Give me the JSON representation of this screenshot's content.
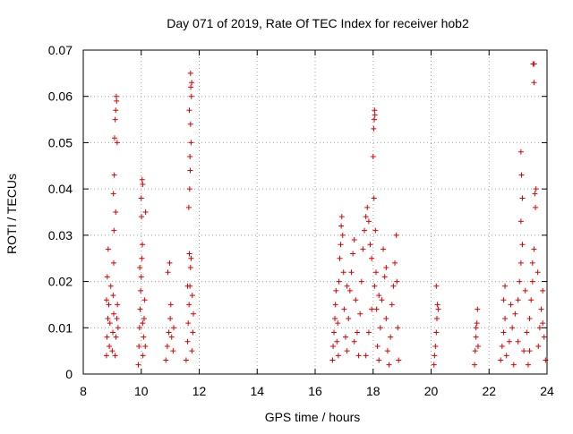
{
  "chart_data": {
    "type": "scatter",
    "title": "Day 071 of 2019, Rate Of TEC Index for receiver hob2",
    "xlabel": "GPS time / hours",
    "ylabel": "ROTI / TECUs",
    "xlim": [
      8,
      24
    ],
    "ylim": [
      0,
      0.07
    ],
    "x_ticks": [
      8,
      10,
      12,
      14,
      16,
      18,
      20,
      22,
      24
    ],
    "x_tick_labels": [
      "8",
      "10",
      "12",
      "14",
      "16",
      "18",
      "20",
      "22",
      "24"
    ],
    "y_ticks": [
      0,
      0.01,
      0.02,
      0.03,
      0.04,
      0.05,
      0.06,
      0.07
    ],
    "y_tick_labels": [
      "0",
      "0.01",
      "0.02",
      "0.03",
      "0.04",
      "0.05",
      "0.06",
      "0.07"
    ],
    "grid": true,
    "marker": "+",
    "marker_color": "#dd0000",
    "series": [
      {
        "name": "hob2",
        "points": [
          [
            8.8,
            0.004
          ],
          [
            8.82,
            0.008
          ],
          [
            8.85,
            0.012
          ],
          [
            8.8,
            0.016
          ],
          [
            8.83,
            0.021
          ],
          [
            8.86,
            0.027
          ],
          [
            8.9,
            0.006
          ],
          [
            8.92,
            0.011
          ],
          [
            8.88,
            0.015
          ],
          [
            8.95,
            0.019
          ],
          [
            9.0,
            0.005
          ],
          [
            9.02,
            0.009
          ],
          [
            9.05,
            0.013
          ],
          [
            9.03,
            0.017
          ],
          [
            9.05,
            0.024
          ],
          [
            9.06,
            0.031
          ],
          [
            9.04,
            0.039
          ],
          [
            9.07,
            0.043
          ],
          [
            9.08,
            0.051
          ],
          [
            9.1,
            0.055
          ],
          [
            9.12,
            0.057
          ],
          [
            9.14,
            0.06
          ],
          [
            9.15,
            0.059
          ],
          [
            9.17,
            0.05
          ],
          [
            9.1,
            0.004
          ],
          [
            9.13,
            0.008
          ],
          [
            9.16,
            0.012
          ],
          [
            9.18,
            0.015
          ],
          [
            9.2,
            0.01
          ],
          [
            9.12,
            0.035
          ],
          [
            9.9,
            0.002
          ],
          [
            9.92,
            0.006
          ],
          [
            9.94,
            0.01
          ],
          [
            9.96,
            0.014
          ],
          [
            9.98,
            0.018
          ],
          [
            10.0,
            0.021
          ],
          [
            10.02,
            0.025
          ],
          [
            10.04,
            0.028
          ],
          [
            10.01,
            0.034
          ],
          [
            10.0,
            0.038
          ],
          [
            10.03,
            0.042
          ],
          [
            10.05,
            0.041
          ],
          [
            10.06,
            0.004
          ],
          [
            10.08,
            0.008
          ],
          [
            10.1,
            0.012
          ],
          [
            10.12,
            0.016
          ],
          [
            10.05,
            0.011
          ],
          [
            10.15,
            0.035
          ],
          [
            10.14,
            0.006
          ],
          [
            9.95,
            0.023
          ],
          [
            10.85,
            0.003
          ],
          [
            10.9,
            0.006
          ],
          [
            10.95,
            0.009
          ],
          [
            11.0,
            0.012
          ],
          [
            11.05,
            0.008
          ],
          [
            11.1,
            0.005
          ],
          [
            10.92,
            0.022
          ],
          [
            10.98,
            0.024
          ],
          [
            11.02,
            0.015
          ],
          [
            11.12,
            0.01
          ],
          [
            11.55,
            0.003
          ],
          [
            11.6,
            0.007
          ],
          [
            11.62,
            0.011
          ],
          [
            11.65,
            0.015
          ],
          [
            11.68,
            0.019
          ],
          [
            11.7,
            0.023
          ],
          [
            11.66,
            0.026
          ],
          [
            11.64,
            0.036
          ],
          [
            11.67,
            0.04
          ],
          [
            11.69,
            0.044
          ],
          [
            11.68,
            0.047
          ],
          [
            11.72,
            0.05
          ],
          [
            11.7,
            0.054
          ],
          [
            11.66,
            0.057
          ],
          [
            11.73,
            0.06
          ],
          [
            11.71,
            0.062
          ],
          [
            11.74,
            0.063
          ],
          [
            11.7,
            0.065
          ],
          [
            11.75,
            0.005
          ],
          [
            11.78,
            0.009
          ],
          [
            11.8,
            0.013
          ],
          [
            11.72,
            0.025
          ],
          [
            11.76,
            0.017
          ],
          [
            11.6,
            0.019
          ],
          [
            16.6,
            0.003
          ],
          [
            16.62,
            0.006
          ],
          [
            16.65,
            0.009
          ],
          [
            16.68,
            0.012
          ],
          [
            16.7,
            0.015
          ],
          [
            16.72,
            0.018
          ],
          [
            16.75,
            0.007
          ],
          [
            16.78,
            0.011
          ],
          [
            16.8,
            0.004
          ],
          [
            16.82,
            0.02
          ],
          [
            16.85,
            0.025
          ],
          [
            16.88,
            0.028
          ],
          [
            16.9,
            0.032
          ],
          [
            16.92,
            0.034
          ],
          [
            16.95,
            0.03
          ],
          [
            16.98,
            0.022
          ],
          [
            17.0,
            0.014
          ],
          [
            17.05,
            0.008
          ],
          [
            17.1,
            0.005
          ],
          [
            17.15,
            0.012
          ],
          [
            17.2,
            0.018
          ],
          [
            17.25,
            0.022
          ],
          [
            17.3,
            0.026
          ],
          [
            17.35,
            0.029
          ],
          [
            17.4,
            0.016
          ],
          [
            17.45,
            0.009
          ],
          [
            17.5,
            0.004
          ],
          [
            17.55,
            0.013
          ],
          [
            17.6,
            0.02
          ],
          [
            17.65,
            0.027
          ],
          [
            17.7,
            0.031
          ],
          [
            17.75,
            0.034
          ],
          [
            17.8,
            0.036
          ],
          [
            17.85,
            0.033
          ],
          [
            17.9,
            0.028
          ],
          [
            17.95,
            0.025
          ],
          [
            18.0,
            0.047
          ],
          [
            18.02,
            0.053
          ],
          [
            18.04,
            0.055
          ],
          [
            18.06,
            0.056
          ],
          [
            18.05,
            0.057
          ],
          [
            18.03,
            0.038
          ],
          [
            18.08,
            0.031
          ],
          [
            18.1,
            0.022
          ],
          [
            18.12,
            0.014
          ],
          [
            18.15,
            0.006
          ],
          [
            18.2,
            0.003
          ],
          [
            18.25,
            0.01
          ],
          [
            18.3,
            0.016
          ],
          [
            18.35,
            0.027
          ],
          [
            18.4,
            0.021
          ],
          [
            18.45,
            0.012
          ],
          [
            18.5,
            0.005
          ],
          [
            18.55,
            0.002
          ],
          [
            18.6,
            0.008
          ],
          [
            18.65,
            0.015
          ],
          [
            18.7,
            0.019
          ],
          [
            18.75,
            0.024
          ],
          [
            18.8,
            0.03
          ],
          [
            18.82,
            0.02
          ],
          [
            18.85,
            0.01
          ],
          [
            18.88,
            0.003
          ],
          [
            17.85,
            0.009
          ],
          [
            17.95,
            0.014
          ],
          [
            18.05,
            0.019
          ],
          [
            17.35,
            0.007
          ],
          [
            17.75,
            0.004
          ],
          [
            18.2,
            0.017
          ],
          [
            18.45,
            0.023
          ],
          [
            17.1,
            0.019
          ],
          [
            20.1,
            0.002
          ],
          [
            20.12,
            0.004
          ],
          [
            20.15,
            0.006
          ],
          [
            20.18,
            0.009
          ],
          [
            20.2,
            0.012
          ],
          [
            20.22,
            0.015
          ],
          [
            20.18,
            0.019
          ],
          [
            20.25,
            0.014
          ],
          [
            21.5,
            0.002
          ],
          [
            21.52,
            0.005
          ],
          [
            21.55,
            0.008
          ],
          [
            21.58,
            0.011
          ],
          [
            21.6,
            0.014
          ],
          [
            21.55,
            0.01
          ],
          [
            21.62,
            0.006
          ],
          [
            22.4,
            0.003
          ],
          [
            22.45,
            0.006
          ],
          [
            22.5,
            0.009
          ],
          [
            22.55,
            0.012
          ],
          [
            22.5,
            0.016
          ],
          [
            22.55,
            0.019
          ],
          [
            22.6,
            0.004
          ],
          [
            22.7,
            0.007
          ],
          [
            22.8,
            0.01
          ],
          [
            22.9,
            0.013
          ],
          [
            23.0,
            0.016
          ],
          [
            23.05,
            0.02
          ],
          [
            23.1,
            0.024
          ],
          [
            23.15,
            0.028
          ],
          [
            23.1,
            0.033
          ],
          [
            23.15,
            0.038
          ],
          [
            23.12,
            0.043
          ],
          [
            23.1,
            0.048
          ],
          [
            23.2,
            0.005
          ],
          [
            23.3,
            0.009
          ],
          [
            23.4,
            0.012
          ],
          [
            23.45,
            0.016
          ],
          [
            23.5,
            0.02
          ],
          [
            23.5,
            0.024
          ],
          [
            23.55,
            0.027
          ],
          [
            23.6,
            0.036
          ],
          [
            23.58,
            0.039
          ],
          [
            23.62,
            0.04
          ],
          [
            23.55,
            0.063
          ],
          [
            23.52,
            0.067
          ],
          [
            23.56,
            0.067
          ],
          [
            23.7,
            0.006
          ],
          [
            23.75,
            0.01
          ],
          [
            23.8,
            0.014
          ],
          [
            23.85,
            0.018
          ],
          [
            23.9,
            0.008
          ],
          [
            23.95,
            0.003
          ],
          [
            22.85,
            0.002
          ],
          [
            23.35,
            0.002
          ],
          [
            23.68,
            0.022
          ],
          [
            23.25,
            0.018
          ],
          [
            22.75,
            0.015
          ],
          [
            23.0,
            0.007
          ],
          [
            23.85,
            0.011
          ],
          [
            23.4,
            0.005
          ]
        ]
      }
    ]
  }
}
